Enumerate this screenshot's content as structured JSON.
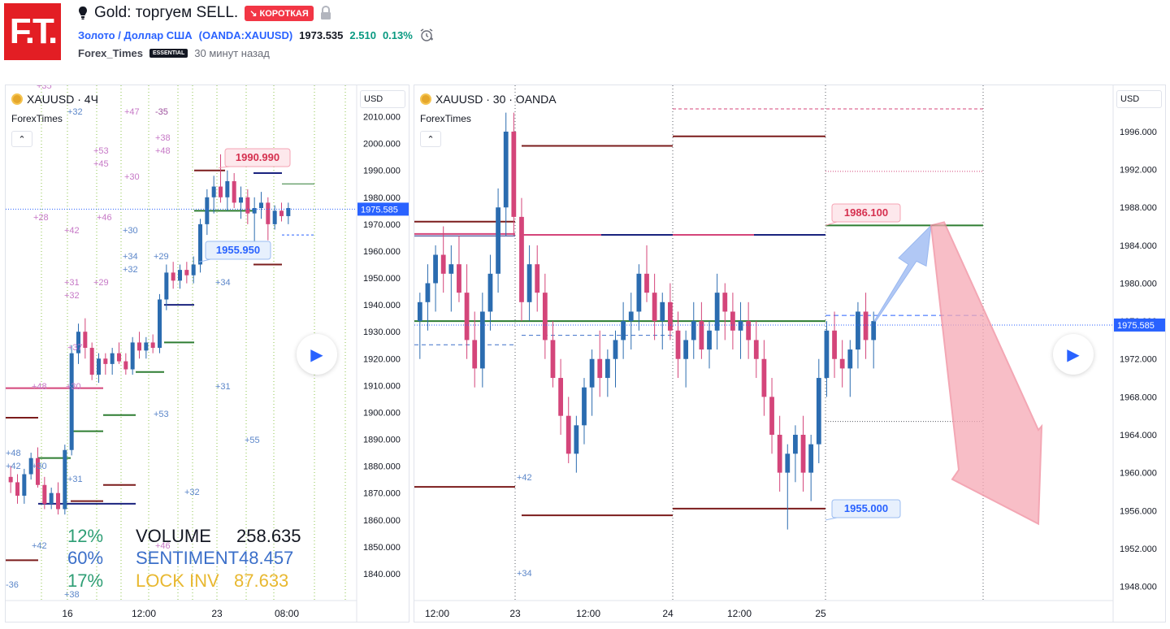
{
  "header": {
    "logo_text": "F.T.",
    "title": "Gold: торгуем SELL.",
    "direction_badge": "↘ КОРОТКАЯ",
    "symbol_name": "Золото / Доллар США",
    "symbol_code": "(OANDA:XAUUSD)",
    "price": "1973.535",
    "change": "2.510",
    "change_pct": "0.13%",
    "author": "Forex_Times",
    "author_badge": "ESSENTIAL",
    "published": "30 минут назад"
  },
  "icons": {
    "idea": "lightbulb-icon",
    "lock": "lock-icon",
    "alert": "alarm-clock-icon",
    "collapse": "chevron-up-icon",
    "play": "play-icon",
    "coin": "gold-coin-icon"
  },
  "colors": {
    "up": "#2b6cb0",
    "down": "#d4457a",
    "accent": "#2962ff",
    "short": "#f23645",
    "green": "#089981"
  },
  "left_pane": {
    "legend": "XAUUSD · 4Ч",
    "indicator": "ForexTimes",
    "currency": "USD",
    "price_label": "1975.585",
    "price_axis": [
      "2010.000",
      "2000.000",
      "1990.000",
      "1980.000",
      "1970.000",
      "1960.000",
      "1950.000",
      "1940.000",
      "1930.000",
      "1920.000",
      "1910.000",
      "1900.000",
      "1890.000",
      "1880.000",
      "1870.000",
      "1860.000",
      "1850.000",
      "1840.000"
    ],
    "time_axis": [
      "16",
      "12:00",
      "23",
      "08:00"
    ],
    "callout_high": "1990.990",
    "callout_low": "1955.950",
    "stats": {
      "pct1": "12%",
      "pct2": "60%",
      "pct3": "17%",
      "volume_label": "VOLUME",
      "volume_value": "258.635",
      "sentiment_label": "SENTIMENT",
      "sentiment_value": "48.457",
      "lock_label": "LOCK INV",
      "lock_value": "87.633"
    },
    "counters_pink": [
      "+35",
      "-35",
      "+47",
      "+38",
      "+48",
      "+53",
      "+45",
      "+30",
      "+28",
      "+46",
      "+42",
      "+31",
      "+32",
      "+29",
      "+37",
      "+30",
      "+48"
    ],
    "counters_blue": [
      "+32",
      "+30",
      "+34",
      "+32",
      "+29",
      "+34",
      "+31",
      "+53",
      "+55",
      "+31",
      "+32",
      "+38",
      "+42",
      "+48",
      "+42",
      "+30",
      "-36",
      "+46"
    ]
  },
  "right_pane": {
    "legend": "XAUUSD · 30 · OANDA",
    "indicator": "ForexTimes",
    "currency": "USD",
    "price_label": "1975.585",
    "price_axis": [
      "1996.000",
      "1992.000",
      "1988.000",
      "1984.000",
      "1980.000",
      "1976.000",
      "1972.000",
      "1968.000",
      "1964.000",
      "1960.000",
      "1956.000",
      "1952.000",
      "1948.000"
    ],
    "time_axis": [
      "12:00",
      "23",
      "12:00",
      "24",
      "12:00",
      "25"
    ],
    "callout_high": "1986.100",
    "callout_low": "1955.000",
    "counters_blue": [
      "+42",
      "+34"
    ]
  },
  "chart_data": [
    {
      "type": "candlestick",
      "title": "XAUUSD · 4Ч",
      "xlabel": "",
      "ylabel": "",
      "ylim": [
        1830,
        2015
      ],
      "x_ticks": [
        "16",
        "12:00",
        "23",
        "08:00"
      ],
      "last_price": 1975.585,
      "annotations": [
        {
          "text": "1990.990",
          "price": 1990.99
        },
        {
          "text": "1955.950",
          "price": 1955.95
        }
      ],
      "stats": [
        {
          "name": "VOLUME",
          "value": 258.635,
          "pct": "12%"
        },
        {
          "name": "SENTIMENT",
          "value": 48.457,
          "pct": "60%"
        },
        {
          "name": "LOCK INV",
          "value": 87.633,
          "pct": "17%"
        }
      ],
      "ohlc": [
        [
          1876,
          1880,
          1870,
          1874
        ],
        [
          1874,
          1877,
          1866,
          1869
        ],
        [
          1869,
          1879,
          1866,
          1877
        ],
        [
          1877,
          1885,
          1875,
          1883
        ],
        [
          1883,
          1887,
          1872,
          1873
        ],
        [
          1873,
          1876,
          1864,
          1866
        ],
        [
          1866,
          1872,
          1864,
          1870
        ],
        [
          1870,
          1874,
          1862,
          1864
        ],
        [
          1864,
          1888,
          1862,
          1886
        ],
        [
          1886,
          1925,
          1884,
          1922
        ],
        [
          1922,
          1933,
          1918,
          1930
        ],
        [
          1930,
          1935,
          1920,
          1924
        ],
        [
          1924,
          1926,
          1912,
          1914
        ],
        [
          1914,
          1922,
          1911,
          1920
        ],
        [
          1920,
          1922,
          1914,
          1918
        ],
        [
          1918,
          1924,
          1914,
          1922
        ],
        [
          1922,
          1926,
          1918,
          1919
        ],
        [
          1919,
          1922,
          1914,
          1916
        ],
        [
          1916,
          1928,
          1914,
          1926
        ],
        [
          1926,
          1930,
          1920,
          1923
        ],
        [
          1923,
          1928,
          1920,
          1926
        ],
        [
          1926,
          1929,
          1922,
          1924
        ],
        [
          1924,
          1944,
          1922,
          1942
        ],
        [
          1942,
          1955,
          1938,
          1952
        ],
        [
          1952,
          1956,
          1946,
          1949
        ],
        [
          1949,
          1955,
          1946,
          1953
        ],
        [
          1953,
          1956,
          1948,
          1951
        ],
        [
          1951,
          1958,
          1948,
          1955
        ],
        [
          1955,
          1972,
          1952,
          1970
        ],
        [
          1970,
          1983,
          1966,
          1980
        ],
        [
          1980,
          1988,
          1974,
          1984
        ],
        [
          1984,
          1996,
          1978,
          1980
        ],
        [
          1980,
          1990,
          1975,
          1986
        ],
        [
          1986,
          1989,
          1976,
          1978
        ],
        [
          1978,
          1984,
          1972,
          1980
        ],
        [
          1980,
          1983,
          1970,
          1974
        ],
        [
          1974,
          1980,
          1962,
          1976
        ],
        [
          1976,
          1982,
          1972,
          1978
        ],
        [
          1978,
          1980,
          1964,
          1970
        ],
        [
          1970,
          1977,
          1968,
          1975
        ],
        [
          1975,
          1978,
          1971,
          1973
        ],
        [
          1973,
          1978,
          1970,
          1976
        ]
      ]
    },
    {
      "type": "candlestick",
      "title": "XAUUSD · 30 · OANDA",
      "xlabel": "",
      "ylabel": "",
      "ylim": [
        1946.5,
        1999
      ],
      "x_ticks": [
        "12:00",
        "23",
        "12:00",
        "24",
        "12:00",
        "25"
      ],
      "last_price": 1975.585,
      "annotations": [
        {
          "text": "1986.100",
          "price": 1986.1
        },
        {
          "text": "1955.000",
          "price": 1955.0
        }
      ],
      "ohlc": [
        [
          1976,
          1979,
          1972,
          1978
        ],
        [
          1978,
          1982,
          1975,
          1980
        ],
        [
          1980,
          1984,
          1977,
          1983
        ],
        [
          1983,
          1986,
          1979,
          1981
        ],
        [
          1981,
          1984,
          1977,
          1982
        ],
        [
          1982,
          1985,
          1978,
          1979
        ],
        [
          1979,
          1982,
          1972,
          1974
        ],
        [
          1974,
          1977,
          1969,
          1971
        ],
        [
          1971,
          1979,
          1969,
          1977
        ],
        [
          1977,
          1983,
          1975,
          1981
        ],
        [
          1981,
          1990,
          1979,
          1988
        ],
        [
          1988,
          1998,
          1985,
          1996
        ],
        [
          1996,
          1998,
          1985,
          1987
        ],
        [
          1987,
          1989,
          1976,
          1978
        ],
        [
          1978,
          1984,
          1976,
          1982
        ],
        [
          1982,
          1984,
          1977,
          1979
        ],
        [
          1979,
          1981,
          1972,
          1974
        ],
        [
          1974,
          1976,
          1969,
          1970
        ],
        [
          1970,
          1972,
          1964,
          1966
        ],
        [
          1966,
          1968,
          1961,
          1962
        ],
        [
          1962,
          1966,
          1960,
          1965
        ],
        [
          1965,
          1970,
          1963,
          1969
        ],
        [
          1969,
          1973,
          1966,
          1972
        ],
        [
          1972,
          1975,
          1968,
          1970
        ],
        [
          1970,
          1973,
          1968,
          1972
        ],
        [
          1972,
          1975,
          1969,
          1974
        ],
        [
          1974,
          1978,
          1972,
          1976
        ],
        [
          1976,
          1979,
          1973,
          1977
        ],
        [
          1977,
          1982,
          1975,
          1981
        ],
        [
          1981,
          1984,
          1978,
          1979
        ],
        [
          1979,
          1981,
          1974,
          1976
        ],
        [
          1976,
          1979,
          1973,
          1978
        ],
        [
          1978,
          1980,
          1974,
          1975
        ],
        [
          1975,
          1977,
          1970,
          1972
        ],
        [
          1972,
          1975,
          1969,
          1974
        ],
        [
          1974,
          1978,
          1972,
          1976
        ],
        [
          1976,
          1978,
          1972,
          1973
        ],
        [
          1973,
          1976,
          1971,
          1975
        ],
        [
          1975,
          1981,
          1973,
          1979
        ],
        [
          1979,
          1980,
          1974,
          1977
        ],
        [
          1977,
          1979,
          1973,
          1975
        ],
        [
          1975,
          1978,
          1972,
          1976
        ],
        [
          1976,
          1978,
          1972,
          1974
        ],
        [
          1974,
          1976,
          1970,
          1972
        ],
        [
          1972,
          1974,
          1966,
          1968
        ],
        [
          1968,
          1970,
          1962,
          1964
        ],
        [
          1964,
          1966,
          1958,
          1960
        ],
        [
          1960,
          1963,
          1954,
          1962
        ],
        [
          1962,
          1965,
          1959,
          1964
        ],
        [
          1964,
          1966,
          1958,
          1960
        ],
        [
          1960,
          1964,
          1957,
          1963
        ],
        [
          1963,
          1972,
          1961,
          1970
        ],
        [
          1970,
          1976,
          1968,
          1975
        ],
        [
          1975,
          1977,
          1970,
          1972
        ],
        [
          1972,
          1974,
          1969,
          1971
        ],
        [
          1971,
          1974,
          1968,
          1973
        ],
        [
          1973,
          1978,
          1971,
          1977
        ],
        [
          1977,
          1979,
          1972,
          1974
        ],
        [
          1974,
          1977,
          1971,
          1976
        ]
      ]
    }
  ]
}
